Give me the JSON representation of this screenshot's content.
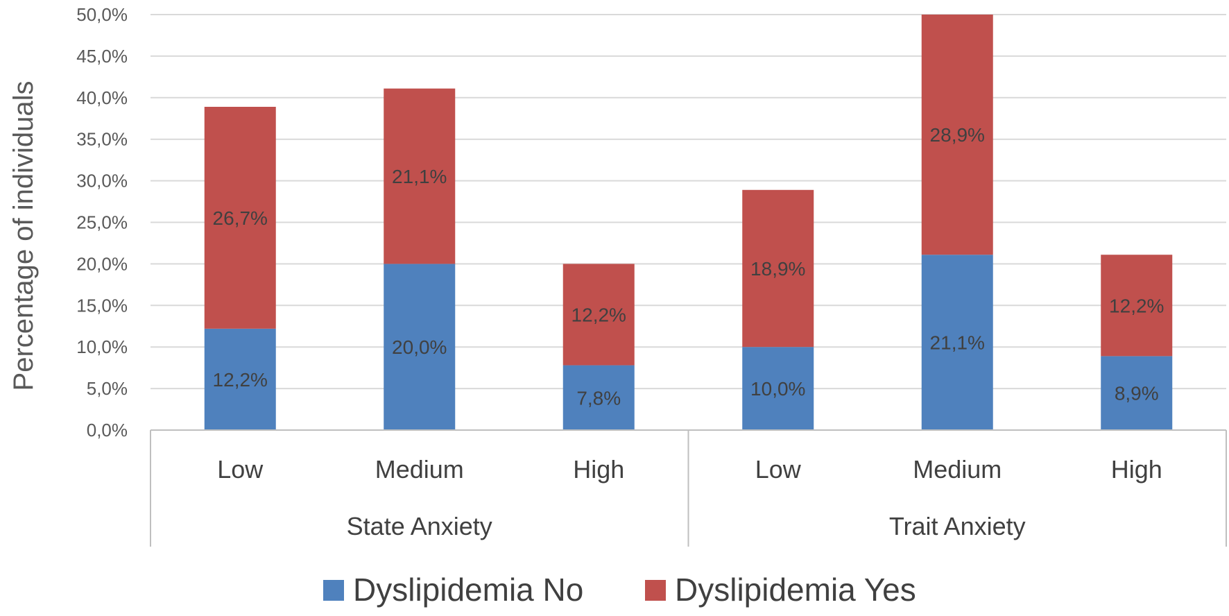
{
  "chart_data": {
    "type": "bar",
    "stacked": true,
    "title": "",
    "xlabel": "",
    "ylabel": "Percentage of individuals",
    "ylim": [
      0,
      50
    ],
    "yticks": [
      0,
      5,
      10,
      15,
      20,
      25,
      30,
      35,
      40,
      45,
      50
    ],
    "ytick_labels": [
      "0,0%",
      "5,0%",
      "10,0%",
      "15,0%",
      "20,0%",
      "25,0%",
      "30,0%",
      "35,0%",
      "40,0%",
      "45,0%",
      "50,0%"
    ],
    "grid": true,
    "legend_position": "bottom",
    "groups": [
      {
        "label": "State Anxiety",
        "categories": [
          "Low",
          "Medium",
          "High"
        ]
      },
      {
        "label": "Trait Anxiety",
        "categories": [
          "Low",
          "Medium",
          "High"
        ]
      }
    ],
    "categories": [
      "Low",
      "Medium",
      "High",
      "Low",
      "Medium",
      "High"
    ],
    "series": [
      {
        "name": "Dyslipidemia No",
        "color": "#4f81bd",
        "values": [
          12.2,
          20.0,
          7.8,
          10.0,
          21.1,
          8.9
        ],
        "labels": [
          "12,2%",
          "20,0%",
          "7,8%",
          "10,0%",
          "21,1%",
          "8,9%"
        ]
      },
      {
        "name": "Dyslipidemia Yes",
        "color": "#c0504d",
        "values": [
          26.7,
          21.1,
          12.2,
          18.9,
          28.9,
          12.2
        ],
        "labels": [
          "26,7%",
          "21,1%",
          "12,2%",
          "18,9%",
          "28,9%",
          "12,2%"
        ]
      }
    ]
  }
}
